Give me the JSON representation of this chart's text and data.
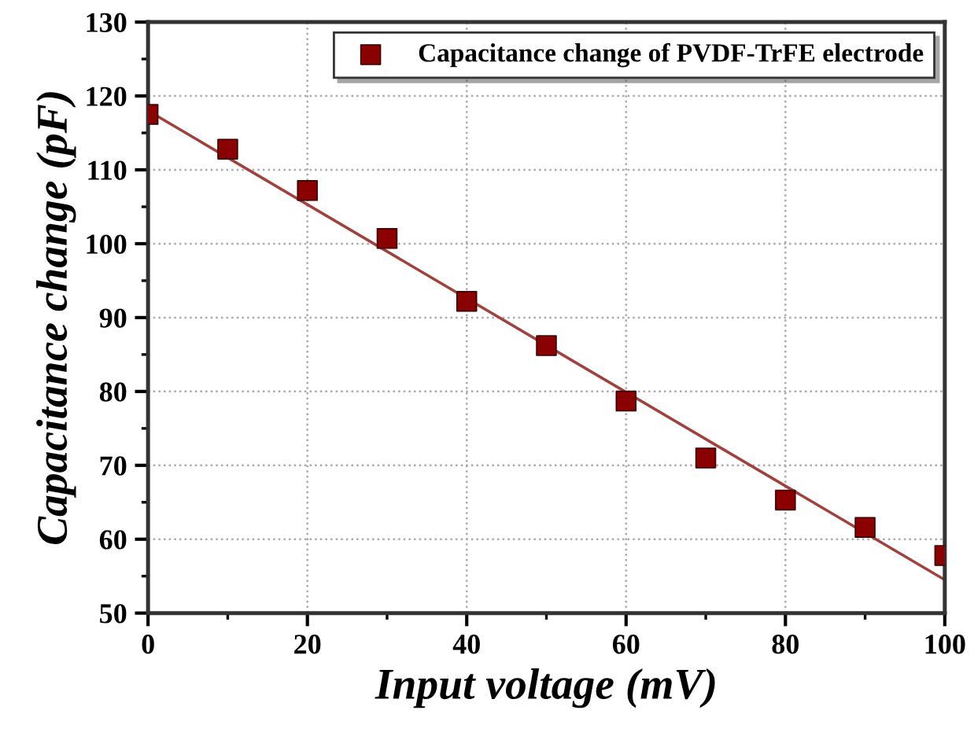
{
  "chart_data": {
    "type": "scatter",
    "xlabel": "Input voltage (mV)",
    "ylabel": "Capacitance change (pF)",
    "x": [
      0,
      10,
      20,
      30,
      40,
      50,
      60,
      70,
      80,
      90,
      100
    ],
    "series": [
      {
        "name": "Capacitance change of PVDF-TrFE electrode",
        "color": "#8b0000",
        "values": [
          117.5,
          112.8,
          107.2,
          100.7,
          92.2,
          86.2,
          78.7,
          71,
          65.3,
          61.6,
          57.8
        ],
        "marker": "square"
      },
      {
        "type": "line",
        "color": "#a0413c",
        "x": [
          0,
          100
        ],
        "values": [
          118,
          54.5
        ],
        "marker": "none"
      }
    ],
    "xlim": [
      0,
      100
    ],
    "ylim": [
      50,
      130
    ],
    "xticks": [
      0,
      {
        "value": 10,
        "label": null
      },
      20,
      {
        "value": 30,
        "label": null
      },
      40,
      {
        "value": 50,
        "label": null
      },
      60,
      {
        "value": 70,
        "label": null
      },
      80,
      {
        "value": 90,
        "label": null
      },
      100
    ],
    "yticks": [
      50,
      {
        "value": 55,
        "label": null
      },
      60,
      {
        "value": 65,
        "label": null
      },
      70,
      {
        "value": 75,
        "label": null
      },
      80,
      {
        "value": 85,
        "label": null
      },
      90,
      {
        "value": 95,
        "label": null
      },
      100,
      {
        "value": 105,
        "label": null
      },
      110,
      {
        "value": 115,
        "label": null
      },
      120,
      {
        "value": 125,
        "label": null
      },
      130
    ],
    "grid": true,
    "legend": "top right"
  }
}
